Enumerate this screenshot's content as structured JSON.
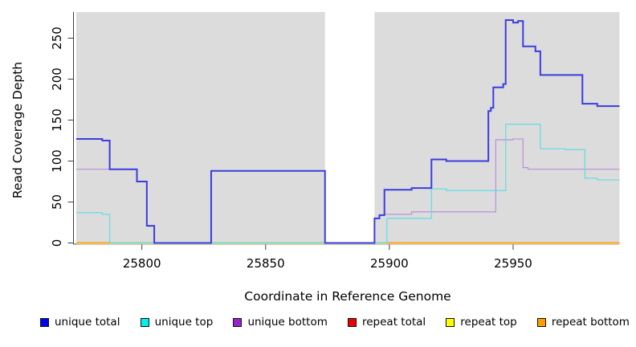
{
  "figure": {
    "background_color": "#ffffff",
    "plot_background_color": "#dcdcdc",
    "axis_color": "#404040",
    "text_color": "#000000"
  },
  "chart_data": {
    "type": "line",
    "step": true,
    "title": "",
    "xlabel": "Coordinate in Reference Genome",
    "ylabel": "Read Coverage Depth",
    "xlim": [
      25773.5,
      25993
    ],
    "ylim": [
      0,
      282
    ],
    "x_ticks": [
      25800,
      25850,
      25900,
      25950
    ],
    "y_ticks": [
      0,
      50,
      100,
      150,
      200,
      250
    ],
    "grid": false,
    "legend_position": "bottom",
    "no_data_band": {
      "x_from": 25874,
      "x_to": 25894,
      "color": "#ffffff",
      "note": "white vertical gap over full plot height"
    },
    "series": [
      {
        "name": "repeat total",
        "legend_color": "#ee0000",
        "line_color": "#ee0000",
        "width": 1.2,
        "steps": [
          [
            25773.5,
            0
          ]
        ]
      },
      {
        "name": "repeat top",
        "legend_color": "#ffff00",
        "line_color": "#e9e6a3",
        "width": 1.2,
        "steps": [
          [
            25773.5,
            0
          ]
        ]
      },
      {
        "name": "repeat bottom",
        "legend_color": "#ff9d00",
        "line_color": "#ff9d00",
        "width": 1.4,
        "steps": [
          [
            25773.5,
            0
          ]
        ]
      },
      {
        "name": "unique bottom",
        "legend_color": "#9922cc",
        "line_color": "#b98ddc",
        "width": 1.2,
        "steps": [
          [
            25773.5,
            90
          ],
          [
            25798,
            75
          ],
          [
            25802,
            21
          ],
          [
            25805,
            0
          ],
          [
            25828,
            88
          ],
          [
            25874,
            0
          ],
          [
            25894,
            30
          ],
          [
            25896,
            34
          ],
          [
            25898,
            35
          ],
          [
            25909,
            38
          ],
          [
            25943,
            126
          ],
          [
            25950,
            127
          ],
          [
            25954,
            92
          ],
          [
            25956,
            90
          ]
        ]
      },
      {
        "name": "unique top",
        "legend_color": "#00eeee",
        "line_color": "#5fdde2",
        "width": 1.2,
        "steps": [
          [
            25773.5,
            37
          ],
          [
            25784,
            35
          ],
          [
            25787,
            0
          ],
          [
            25899,
            30
          ],
          [
            25917,
            66
          ],
          [
            25923,
            64
          ],
          [
            25947,
            145
          ],
          [
            25961,
            115
          ],
          [
            25971,
            114
          ],
          [
            25979,
            79
          ],
          [
            25984,
            77
          ]
        ]
      },
      {
        "name": "unique total",
        "legend_color": "#0000ee",
        "line_color": "#3c3ce0",
        "width": 2,
        "steps": [
          [
            25773.5,
            127
          ],
          [
            25784,
            125
          ],
          [
            25787,
            90
          ],
          [
            25798,
            75
          ],
          [
            25802,
            21
          ],
          [
            25805,
            0
          ],
          [
            25828,
            88
          ],
          [
            25874,
            0
          ],
          [
            25894,
            30
          ],
          [
            25896,
            34
          ],
          [
            25898,
            65
          ],
          [
            25909,
            67
          ],
          [
            25917,
            102
          ],
          [
            25923,
            100
          ],
          [
            25940,
            161
          ],
          [
            25941,
            165
          ],
          [
            25942,
            190
          ],
          [
            25946,
            194
          ],
          [
            25947,
            272
          ],
          [
            25950,
            269
          ],
          [
            25952,
            271
          ],
          [
            25954,
            240
          ],
          [
            25959,
            234
          ],
          [
            25961,
            205
          ],
          [
            25978,
            170
          ],
          [
            25984,
            167
          ]
        ]
      }
    ],
    "zero_overlap_artifact": {
      "color": "#9cd49c",
      "x_from": 25787,
      "x_to": 25899,
      "note": "light-green line at depth 0 where cyan and yellow overlap"
    }
  },
  "legend": {
    "items": [
      {
        "label": "unique total",
        "color": "#0000ee"
      },
      {
        "label": "unique top",
        "color": "#00eeee"
      },
      {
        "label": "unique bottom",
        "color": "#9922cc"
      },
      {
        "label": "repeat total",
        "color": "#ee0000"
      },
      {
        "label": "repeat top",
        "color": "#ffff00"
      },
      {
        "label": "repeat bottom",
        "color": "#ff9d00"
      }
    ]
  }
}
